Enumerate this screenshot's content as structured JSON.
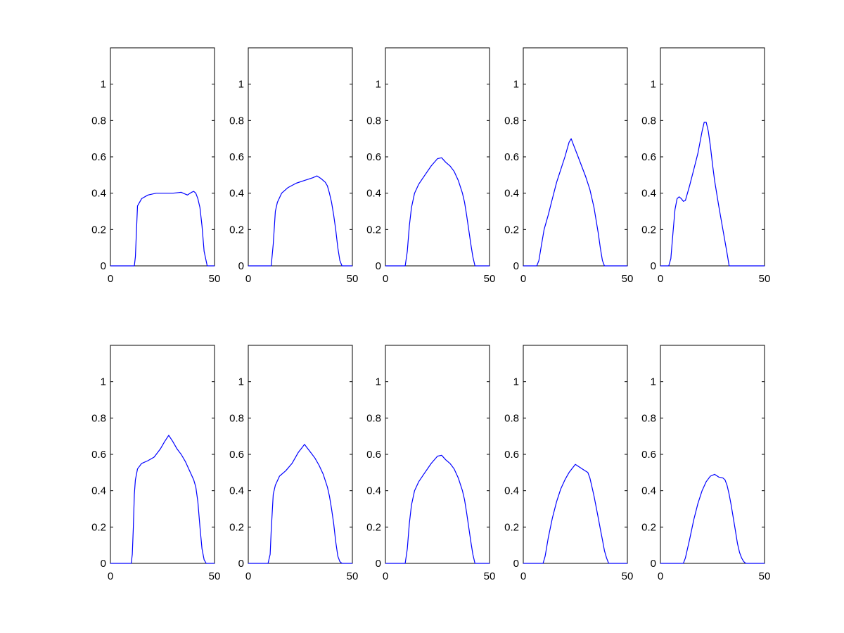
{
  "chart_data": [
    {
      "type": "line",
      "xlim": [
        0,
        50
      ],
      "ylim": [
        0,
        1.2
      ],
      "xticks": [
        0,
        50
      ],
      "yticks": [
        0,
        0.2,
        0.4,
        0.6,
        0.8,
        1
      ],
      "grid": false,
      "series": [
        {
          "x": [
            0,
            11.5,
            12,
            13,
            15,
            18,
            22,
            26,
            30,
            34,
            37,
            39,
            40,
            41,
            42,
            43,
            44,
            45,
            46.5,
            47,
            50
          ],
          "values": [
            0,
            0,
            0.05,
            0.33,
            0.37,
            0.39,
            0.4,
            0.4,
            0.4,
            0.405,
            0.39,
            0.405,
            0.41,
            0.4,
            0.37,
            0.32,
            0.22,
            0.08,
            0,
            0,
            0
          ]
        }
      ]
    },
    {
      "type": "line",
      "xlim": [
        0,
        50
      ],
      "ylim": [
        0,
        1.2
      ],
      "xticks": [
        0,
        50
      ],
      "yticks": [
        0,
        0.2,
        0.4,
        0.6,
        0.8,
        1
      ],
      "grid": false,
      "series": [
        {
          "x": [
            0,
            11,
            12,
            13,
            14,
            16,
            19,
            23,
            27,
            31,
            33,
            35,
            37,
            38,
            39,
            40,
            41,
            42,
            43,
            44,
            45,
            50
          ],
          "values": [
            0,
            0,
            0.12,
            0.3,
            0.35,
            0.4,
            0.43,
            0.455,
            0.47,
            0.485,
            0.495,
            0.48,
            0.46,
            0.44,
            0.4,
            0.35,
            0.28,
            0.2,
            0.1,
            0.03,
            0,
            0
          ]
        }
      ]
    },
    {
      "type": "line",
      "xlim": [
        0,
        50
      ],
      "ylim": [
        0,
        1.2
      ],
      "xticks": [
        0,
        50
      ],
      "yticks": [
        0,
        0.2,
        0.4,
        0.6,
        0.8,
        1
      ],
      "grid": false,
      "series": [
        {
          "x": [
            0,
            9.5,
            10.5,
            11.5,
            12.5,
            14,
            16,
            19,
            22,
            25,
            27,
            29,
            31,
            33,
            35,
            37,
            38,
            39,
            40,
            41,
            42,
            43,
            44,
            50
          ],
          "values": [
            0,
            0,
            0.08,
            0.22,
            0.32,
            0.4,
            0.45,
            0.5,
            0.55,
            0.59,
            0.595,
            0.57,
            0.55,
            0.52,
            0.47,
            0.4,
            0.35,
            0.28,
            0.2,
            0.12,
            0.05,
            0,
            0,
            0
          ]
        }
      ]
    },
    {
      "type": "line",
      "xlim": [
        0,
        50
      ],
      "ylim": [
        0,
        1.2
      ],
      "xticks": [
        0,
        50
      ],
      "yticks": [
        0,
        0.2,
        0.4,
        0.6,
        0.8,
        1
      ],
      "grid": false,
      "series": [
        {
          "x": [
            0,
            6.5,
            7.5,
            8.5,
            10,
            12,
            14,
            16,
            18,
            20,
            22,
            23,
            24,
            26,
            28,
            30,
            32,
            34,
            36,
            37,
            38,
            39,
            50
          ],
          "values": [
            0,
            0,
            0.03,
            0.1,
            0.2,
            0.28,
            0.37,
            0.46,
            0.53,
            0.6,
            0.68,
            0.7,
            0.67,
            0.61,
            0.55,
            0.49,
            0.42,
            0.32,
            0.18,
            0.1,
            0.03,
            0,
            0
          ]
        }
      ]
    },
    {
      "type": "line",
      "xlim": [
        0,
        50
      ],
      "ylim": [
        0,
        1.2
      ],
      "xticks": [
        0,
        50
      ],
      "yticks": [
        0,
        0.2,
        0.4,
        0.6,
        0.8,
        1
      ],
      "grid": false,
      "series": [
        {
          "x": [
            0,
            4,
            5,
            6,
            7,
            8,
            9,
            10,
            11,
            12,
            14,
            16,
            18,
            20,
            21,
            22,
            23,
            24,
            25,
            26,
            28,
            30,
            32,
            33,
            50
          ],
          "values": [
            0,
            0,
            0.04,
            0.18,
            0.31,
            0.37,
            0.38,
            0.37,
            0.355,
            0.36,
            0.44,
            0.53,
            0.62,
            0.74,
            0.79,
            0.79,
            0.74,
            0.66,
            0.56,
            0.47,
            0.33,
            0.2,
            0.07,
            0,
            0
          ]
        }
      ]
    },
    {
      "type": "line",
      "xlim": [
        0,
        50
      ],
      "ylim": [
        0,
        1.2
      ],
      "xticks": [
        0,
        50
      ],
      "yticks": [
        0,
        0.2,
        0.4,
        0.6,
        0.8,
        1
      ],
      "grid": false,
      "series": [
        {
          "x": [
            0,
            10,
            10.5,
            11,
            11.5,
            12,
            13,
            15,
            18,
            21,
            24,
            26,
            28,
            30,
            32,
            34,
            36,
            38,
            40,
            41,
            42,
            43,
            44,
            45,
            46,
            50
          ],
          "values": [
            0,
            0,
            0.05,
            0.2,
            0.38,
            0.46,
            0.52,
            0.55,
            0.565,
            0.585,
            0.63,
            0.67,
            0.705,
            0.67,
            0.63,
            0.6,
            0.56,
            0.51,
            0.46,
            0.42,
            0.34,
            0.2,
            0.08,
            0.02,
            0,
            0
          ]
        }
      ]
    },
    {
      "type": "line",
      "xlim": [
        0,
        50
      ],
      "ylim": [
        0,
        1.2
      ],
      "xticks": [
        0,
        50
      ],
      "yticks": [
        0,
        0.2,
        0.4,
        0.6,
        0.8,
        1
      ],
      "grid": false,
      "series": [
        {
          "x": [
            0,
            9.5,
            10.5,
            11,
            12,
            13,
            15,
            18,
            21,
            24,
            26,
            27,
            28,
            30,
            32,
            34,
            36,
            38,
            39,
            40,
            41,
            42,
            43,
            44,
            45,
            50
          ],
          "values": [
            0,
            0,
            0.05,
            0.18,
            0.38,
            0.43,
            0.48,
            0.51,
            0.55,
            0.61,
            0.64,
            0.655,
            0.64,
            0.61,
            0.58,
            0.54,
            0.49,
            0.42,
            0.37,
            0.3,
            0.22,
            0.12,
            0.04,
            0.01,
            0,
            0
          ]
        }
      ]
    },
    {
      "type": "line",
      "xlim": [
        0,
        50
      ],
      "ylim": [
        0,
        1.2
      ],
      "xticks": [
        0,
        50
      ],
      "yticks": [
        0,
        0.2,
        0.4,
        0.6,
        0.8,
        1
      ],
      "grid": false,
      "series": [
        {
          "x": [
            0,
            9.5,
            10.5,
            11.5,
            12.5,
            14,
            16,
            19,
            22,
            25,
            27,
            29,
            31,
            33,
            35,
            37,
            38,
            39,
            40,
            41,
            42,
            43,
            44,
            50
          ],
          "values": [
            0,
            0,
            0.08,
            0.22,
            0.32,
            0.4,
            0.45,
            0.5,
            0.55,
            0.59,
            0.595,
            0.57,
            0.55,
            0.52,
            0.47,
            0.4,
            0.35,
            0.28,
            0.2,
            0.12,
            0.05,
            0,
            0,
            0
          ]
        }
      ]
    },
    {
      "type": "line",
      "xlim": [
        0,
        50
      ],
      "ylim": [
        0,
        1.2
      ],
      "xticks": [
        0,
        50
      ],
      "yticks": [
        0,
        0.2,
        0.4,
        0.6,
        0.8,
        1
      ],
      "grid": false,
      "series": [
        {
          "x": [
            0,
            9.5,
            10.5,
            12,
            14,
            16,
            18,
            20,
            22,
            24,
            25,
            27,
            29,
            31,
            32,
            33,
            34,
            35,
            36,
            37,
            38,
            39,
            40,
            41,
            42,
            50
          ],
          "values": [
            0,
            0,
            0.04,
            0.14,
            0.25,
            0.34,
            0.41,
            0.46,
            0.5,
            0.53,
            0.545,
            0.53,
            0.515,
            0.5,
            0.47,
            0.42,
            0.37,
            0.31,
            0.25,
            0.19,
            0.13,
            0.07,
            0.03,
            0,
            0,
            0
          ]
        }
      ]
    },
    {
      "type": "line",
      "xlim": [
        0,
        50
      ],
      "ylim": [
        0,
        1.2
      ],
      "xticks": [
        0,
        50
      ],
      "yticks": [
        0,
        0.2,
        0.4,
        0.6,
        0.8,
        1
      ],
      "grid": false,
      "series": [
        {
          "x": [
            0,
            11,
            12,
            14,
            16,
            18,
            20,
            22,
            24,
            26,
            28,
            30,
            31,
            32,
            33,
            34,
            35,
            36,
            37,
            38,
            39,
            40,
            41,
            50
          ],
          "values": [
            0,
            0,
            0.03,
            0.13,
            0.24,
            0.33,
            0.4,
            0.45,
            0.48,
            0.49,
            0.475,
            0.47,
            0.46,
            0.43,
            0.38,
            0.32,
            0.25,
            0.18,
            0.11,
            0.06,
            0.03,
            0.01,
            0,
            0
          ]
        }
      ]
    }
  ],
  "colors": {
    "curve": "#0000ff",
    "axes": "#000000",
    "background": "#ffffff"
  }
}
